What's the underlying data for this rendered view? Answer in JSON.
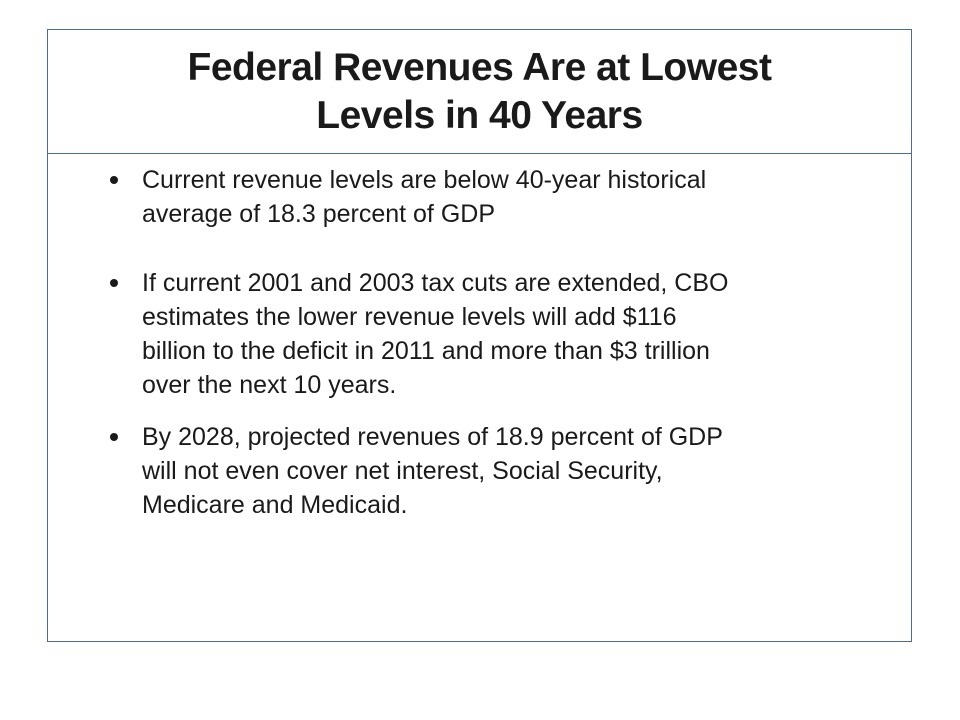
{
  "slide": {
    "title_lines": [
      "Federal Revenues Are at Lowest",
      "Levels in 40 Years"
    ],
    "bullets": [
      {
        "lines": [
          "Current revenue levels are below 40-year historical",
          "average of 18.3 percent of GDP"
        ]
      },
      {
        "lines": [
          "If current 2001 and 2003 tax cuts are extended, CBO",
          "estimates the lower revenue levels will add $116",
          "billion to the deficit in 2011 and more than $3 trillion",
          "over the next 10 years."
        ]
      },
      {
        "lines": [
          "By 2028, projected revenues of 18.9 percent of GDP",
          "will not even cover net interest, Social Security,",
          "Medicare and Medicaid."
        ]
      }
    ]
  }
}
